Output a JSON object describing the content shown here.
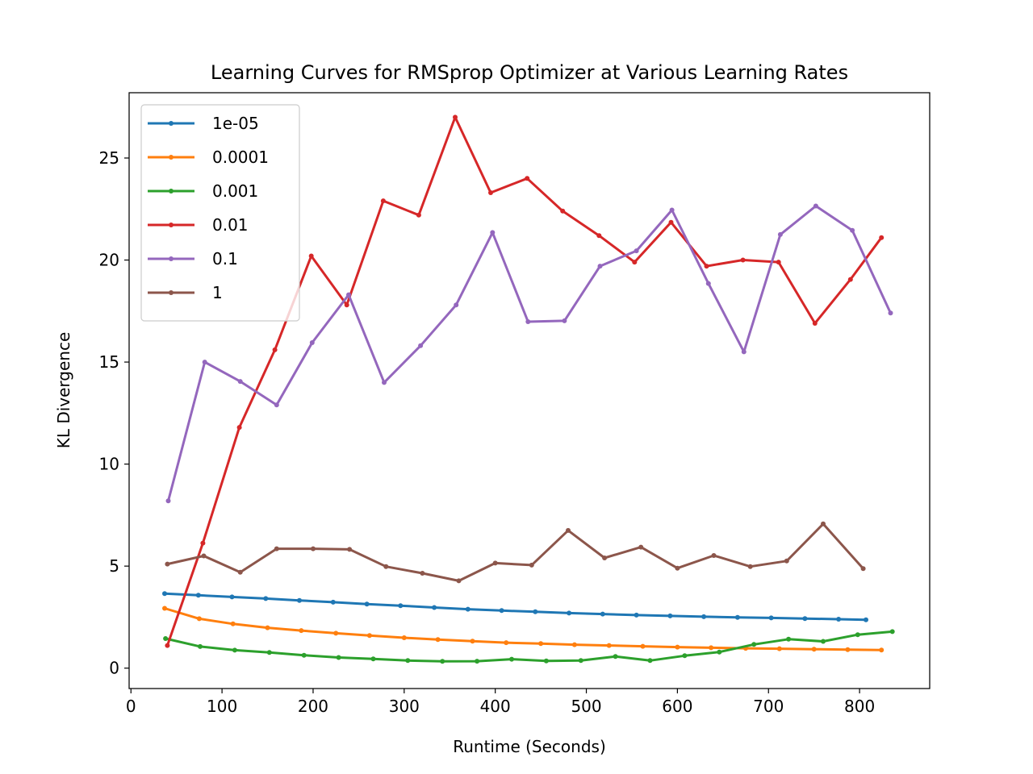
{
  "chart_data": {
    "type": "line",
    "title": "Learning Curves for RMSprop Optimizer at Various Learning Rates",
    "xlabel": "Runtime (Seconds)",
    "ylabel": "KL Divergence",
    "xlim": [
      -2,
      877
    ],
    "ylim": [
      -1,
      28.2
    ],
    "xticks": [
      0,
      100,
      200,
      300,
      400,
      500,
      600,
      700,
      800
    ],
    "yticks": [
      0,
      5,
      10,
      15,
      20,
      25
    ],
    "grid": false,
    "legend_position": "upper-left",
    "series": [
      {
        "name": "1e-05",
        "color": "#1f77b4",
        "x": [
          37,
          74,
          111,
          148,
          185,
          222,
          259,
          296,
          333,
          370,
          407,
          444,
          481,
          518,
          555,
          592,
          629,
          666,
          703,
          740,
          777,
          807
        ],
        "y": [
          3.65,
          3.57,
          3.49,
          3.41,
          3.32,
          3.23,
          3.14,
          3.06,
          2.97,
          2.89,
          2.82,
          2.76,
          2.7,
          2.65,
          2.6,
          2.56,
          2.52,
          2.49,
          2.46,
          2.43,
          2.4,
          2.37
        ]
      },
      {
        "name": "0.0001",
        "color": "#ff7f0e",
        "x": [
          37,
          75,
          112,
          150,
          187,
          225,
          262,
          300,
          337,
          375,
          412,
          450,
          487,
          525,
          562,
          600,
          637,
          675,
          712,
          750,
          787,
          824
        ],
        "y": [
          2.93,
          2.42,
          2.17,
          1.98,
          1.84,
          1.71,
          1.6,
          1.49,
          1.4,
          1.32,
          1.25,
          1.2,
          1.15,
          1.11,
          1.07,
          1.03,
          1.0,
          0.97,
          0.95,
          0.93,
          0.91,
          0.89
        ]
      },
      {
        "name": "0.001",
        "color": "#2ca02c",
        "x": [
          38,
          76,
          114,
          152,
          190,
          228,
          266,
          304,
          342,
          380,
          418,
          456,
          494,
          532,
          570,
          608,
          646,
          684,
          722,
          760,
          798,
          836
        ],
        "y": [
          1.45,
          1.06,
          0.88,
          0.77,
          0.63,
          0.52,
          0.45,
          0.37,
          0.33,
          0.34,
          0.44,
          0.35,
          0.37,
          0.57,
          0.37,
          0.61,
          0.79,
          1.16,
          1.42,
          1.31,
          1.64,
          1.79
        ]
      },
      {
        "name": "0.01",
        "color": "#d62728",
        "x": [
          40,
          79,
          119,
          158,
          198,
          237,
          277,
          316,
          356,
          395,
          435,
          474,
          514,
          553,
          593,
          632,
          672,
          711,
          751,
          790,
          824
        ],
        "y": [
          1.11,
          6.13,
          11.8,
          15.6,
          20.2,
          17.8,
          22.9,
          22.2,
          27.0,
          23.3,
          24.0,
          22.4,
          21.2,
          19.9,
          21.85,
          19.7,
          20.0,
          19.9,
          16.9,
          19.05,
          21.1
        ]
      },
      {
        "name": "0.1",
        "color": "#9467bd",
        "x": [
          41,
          81,
          120,
          160,
          199,
          239,
          278,
          318,
          357,
          397,
          436,
          476,
          515,
          555,
          594,
          634,
          673,
          713,
          752,
          792,
          834
        ],
        "y": [
          8.2,
          15.0,
          14.05,
          12.9,
          15.95,
          18.3,
          14.0,
          15.8,
          17.8,
          21.35,
          16.98,
          17.02,
          19.7,
          20.45,
          22.45,
          18.85,
          15.5,
          21.25,
          22.65,
          21.45,
          17.4
        ]
      },
      {
        "name": "1",
        "color": "#8c564b",
        "x": [
          40,
          80,
          120,
          160,
          200,
          240,
          280,
          320,
          360,
          400,
          440,
          480,
          520,
          560,
          600,
          640,
          680,
          720,
          760,
          804
        ],
        "y": [
          5.1,
          5.5,
          4.7,
          5.85,
          5.85,
          5.82,
          4.98,
          4.65,
          4.28,
          5.15,
          5.05,
          6.75,
          5.4,
          5.93,
          4.9,
          5.52,
          4.98,
          5.25,
          7.07,
          4.88
        ]
      }
    ]
  }
}
